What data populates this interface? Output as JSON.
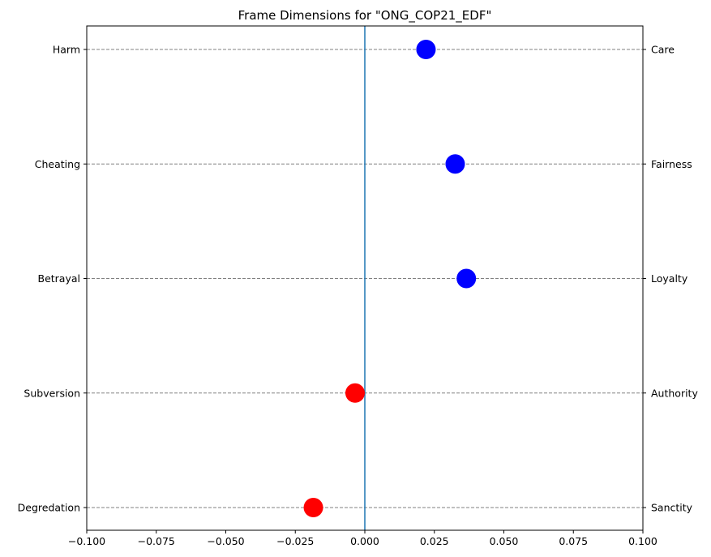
{
  "chart_data": {
    "type": "scatter",
    "title": "Frame Dimensions for \"ONG_COP21_EDF\"",
    "xlim": [
      -0.1,
      0.1
    ],
    "x_ticks": [
      -0.1,
      -0.075,
      -0.05,
      -0.025,
      0.0,
      0.025,
      0.05,
      0.075,
      0.1
    ],
    "x_tick_labels": [
      "−0.100",
      "−0.075",
      "−0.050",
      "−0.025",
      "0.000",
      "0.025",
      "0.050",
      "0.075",
      "0.100"
    ],
    "grid": "horizontal dashed",
    "zero_line": 0.0,
    "points": [
      {
        "left_label": "Harm",
        "right_label": "Care",
        "value": 0.022,
        "color": "#0000ff"
      },
      {
        "left_label": "Cheating",
        "right_label": "Fairness",
        "value": 0.0325,
        "color": "#0000ff"
      },
      {
        "left_label": "Betrayal",
        "right_label": "Loyalty",
        "value": 0.0365,
        "color": "#0000ff"
      },
      {
        "left_label": "Subversion",
        "right_label": "Authority",
        "value": -0.0035,
        "color": "#ff0000"
      },
      {
        "left_label": "Degredation",
        "right_label": "Sanctity",
        "value": -0.0185,
        "color": "#ff0000"
      }
    ]
  }
}
